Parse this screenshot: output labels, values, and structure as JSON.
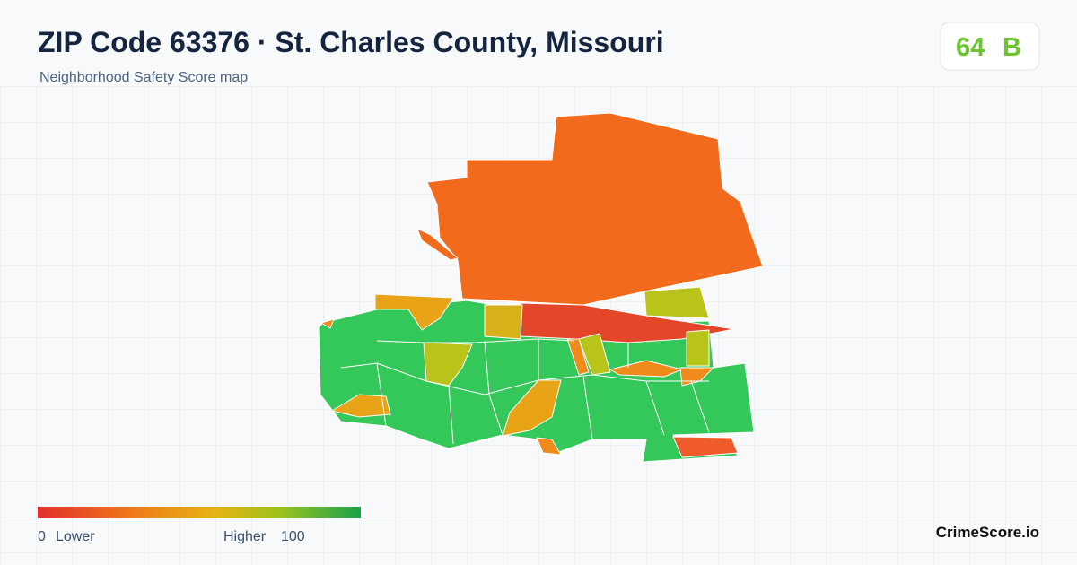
{
  "header": {
    "title": "ZIP Code 63376 · St. Charles County, Missouri",
    "subtitle": "Neighborhood Safety Score map"
  },
  "score_badge": {
    "score": "64",
    "grade": "B"
  },
  "legend": {
    "min": "0",
    "min_label": "Lower",
    "max_label": "Higher",
    "max": "100"
  },
  "footer": {
    "brand": "CrimeScore.io"
  }
}
